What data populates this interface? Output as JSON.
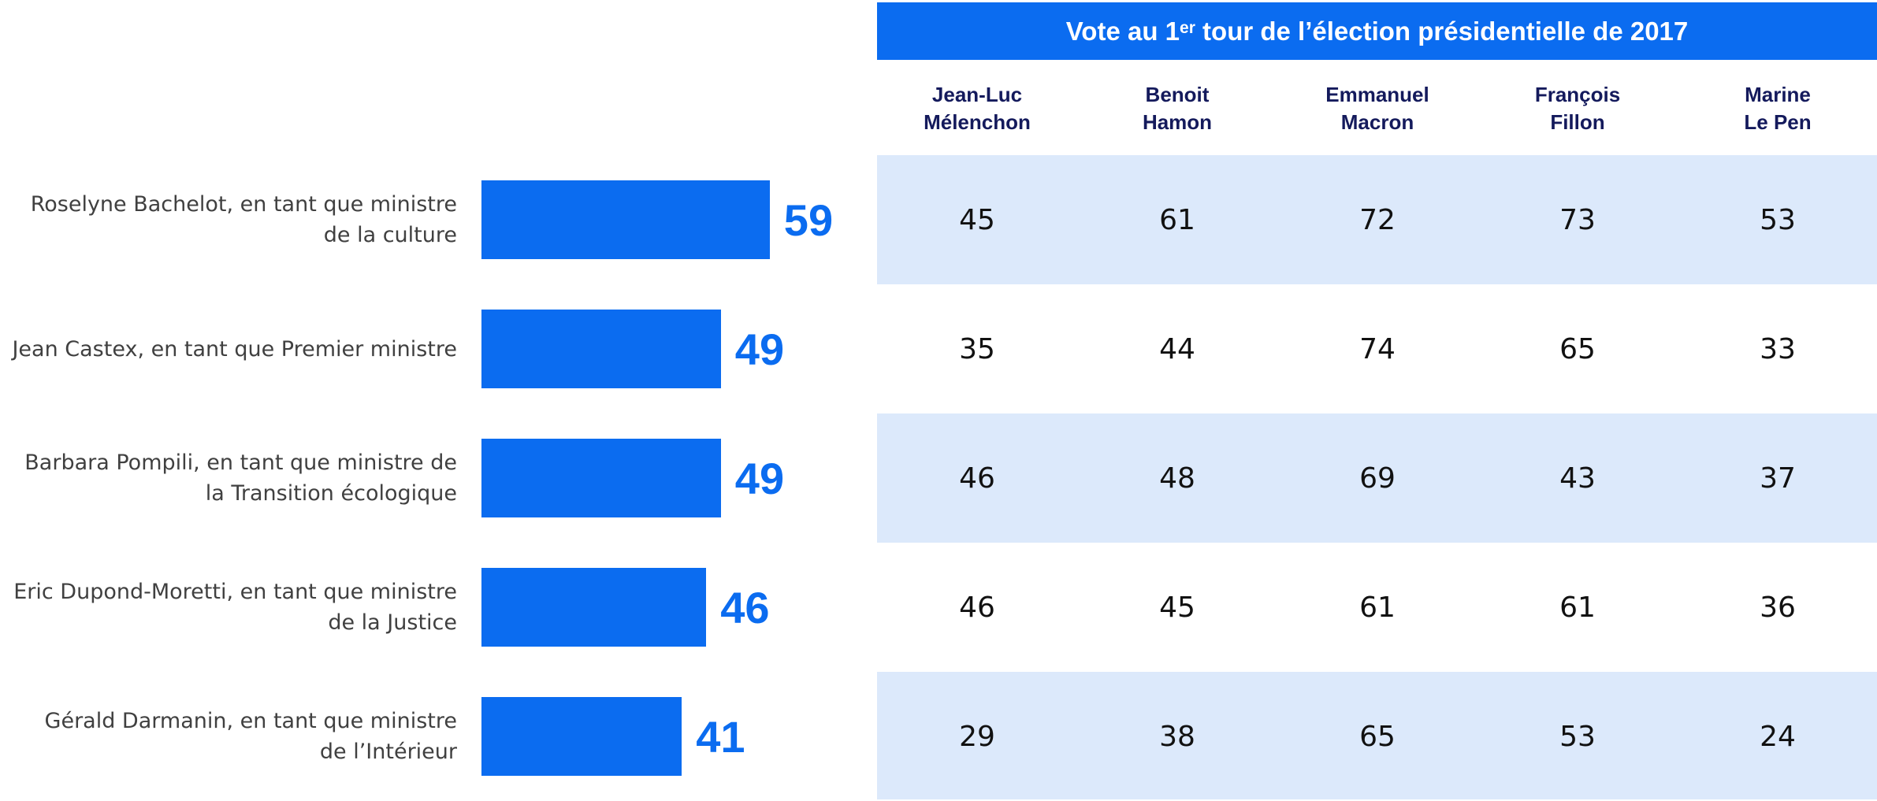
{
  "chart_data": {
    "type": "bar",
    "orientation": "horizontal",
    "color": "#0b6cf0",
    "categories": [
      "Roselyne Bachelot, en tant que ministre de la culture",
      "Jean Castex, en tant que Premier ministre",
      "Barbara Pompili, en tant que ministre de la Transition écologique",
      "Eric Dupond-Moretti, en tant que ministre de la Justice",
      "Gérald Darmanin, en tant que ministre de l’Intérieur"
    ],
    "values": [
      59,
      49,
      49,
      46,
      41
    ]
  },
  "table": {
    "title": [
      "Vote au 1",
      "er",
      " tour de l’élection présidentielle de 2017"
    ],
    "columns": [
      [
        "Jean-Luc",
        "Mélenchon"
      ],
      [
        "Benoit",
        "Hamon"
      ],
      [
        "Emmanuel",
        "Macron"
      ],
      [
        "François",
        "Fillon"
      ],
      [
        "Marine",
        "Le Pen"
      ]
    ],
    "rows": [
      [
        45,
        61,
        72,
        73,
        53
      ],
      [
        35,
        44,
        74,
        65,
        33
      ],
      [
        46,
        48,
        69,
        43,
        37
      ],
      [
        46,
        45,
        61,
        61,
        36
      ],
      [
        29,
        38,
        65,
        53,
        24
      ]
    ]
  }
}
